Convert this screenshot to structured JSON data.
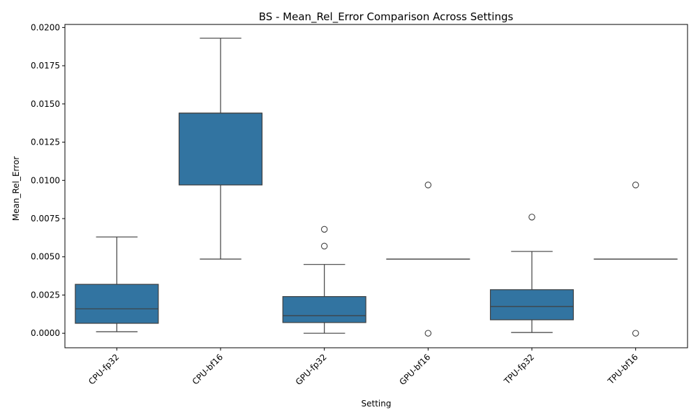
{
  "chart_data": {
    "type": "boxplot",
    "title": "BS - Mean_Rel_Error Comparison Across Settings",
    "xlabel": "Setting",
    "ylabel": "Mean_Rel_Error",
    "ylim": [
      -0.00095,
      0.0202
    ],
    "yticks": [
      "0.0000",
      "0.0025",
      "0.0050",
      "0.0075",
      "0.0100",
      "0.0125",
      "0.0150",
      "0.0175",
      "0.0200"
    ],
    "categories": [
      "CPU-fp32",
      "CPU-bf16",
      "GPU-fp32",
      "GPU-bf16",
      "TPU-fp32",
      "TPU-bf16"
    ],
    "box_color": "#3274a1",
    "edge_color": "#3f3f3f",
    "boxes": [
      {
        "whisker_low": 0.0001,
        "q1": 0.00065,
        "median": 0.0016,
        "q3": 0.0032,
        "whisker_high": 0.0063,
        "outliers": []
      },
      {
        "whisker_low": 0.00485,
        "q1": 0.0097,
        "median": 0.0144,
        "q3": 0.0144,
        "whisker_high": 0.0193,
        "outliers": []
      },
      {
        "whisker_low": 0.0,
        "q1": 0.0007,
        "median": 0.00115,
        "q3": 0.0024,
        "whisker_high": 0.0045,
        "outliers": [
          0.0057,
          0.0068
        ]
      },
      {
        "whisker_low": 0.00485,
        "q1": 0.00485,
        "median": 0.00485,
        "q3": 0.00485,
        "whisker_high": 0.00485,
        "outliers": [
          0.0,
          0.0097
        ]
      },
      {
        "whisker_low": 5e-05,
        "q1": 0.00088,
        "median": 0.00175,
        "q3": 0.00285,
        "whisker_high": 0.00535,
        "outliers": [
          0.0076
        ]
      },
      {
        "whisker_low": 0.00485,
        "q1": 0.00485,
        "median": 0.00485,
        "q3": 0.00485,
        "whisker_high": 0.00485,
        "outliers": [
          0.0,
          0.0097
        ]
      }
    ]
  }
}
